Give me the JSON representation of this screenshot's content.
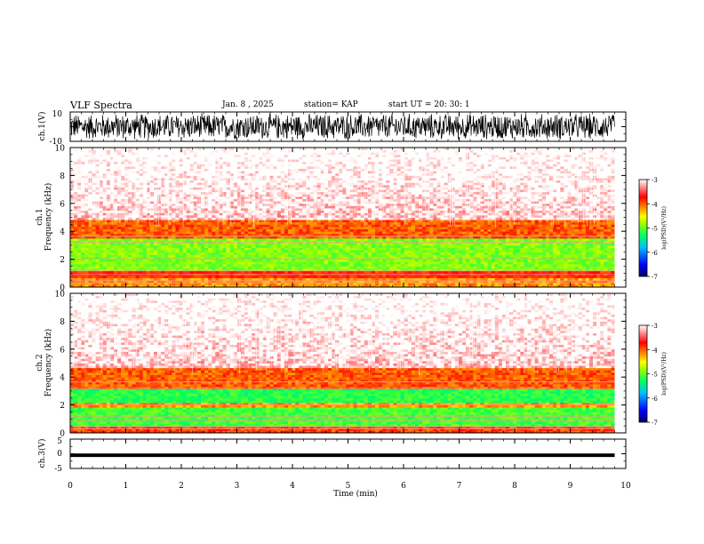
{
  "header": {
    "title": "VLF Spectra",
    "date": "Jan. 8 , 2025",
    "station": "station= KAP",
    "start": "start UT = 20: 30: 1"
  },
  "chart_data": [
    {
      "type": "line",
      "name": "ch1-waveform",
      "ylabel": "ch.1(V)",
      "ylim": [
        -10,
        10
      ],
      "yticks": [
        "10",
        "-10"
      ],
      "xlim": [
        0,
        10
      ],
      "description_values": "dense noise waveform mostly between -7 and 7 V"
    },
    {
      "type": "heatmap",
      "name": "ch1-spectrogram",
      "ylabel_top": "ch.1",
      "ylabel": "Frequency (kHz)",
      "ylim": [
        0,
        10
      ],
      "yticks": [
        "0",
        "2",
        "4",
        "6",
        "8",
        "10"
      ],
      "xlim": [
        0,
        9.8
      ],
      "bands": [
        {
          "from": 0,
          "to": 0.6,
          "level": -4.2
        },
        {
          "from": 0.6,
          "to": 1.1,
          "level": -3.8
        },
        {
          "from": 1.1,
          "to": 3.5,
          "level": -4.9
        },
        {
          "from": 3.5,
          "to": 4.8,
          "level": -4.0
        },
        {
          "from": 4.8,
          "to": 10,
          "level": -3.2
        }
      ]
    },
    {
      "type": "heatmap",
      "name": "ch2-spectrogram",
      "ylabel_top": "ch.2",
      "ylabel": "Frequency (kHz)",
      "ylim": [
        0,
        10
      ],
      "yticks": [
        "0",
        "2",
        "4",
        "6",
        "8",
        "10"
      ],
      "xlim": [
        0,
        9.8
      ],
      "bands": [
        {
          "from": 0,
          "to": 0.5,
          "level": -3.9
        },
        {
          "from": 0.5,
          "to": 1.8,
          "level": -5.1
        },
        {
          "from": 1.8,
          "to": 2.1,
          "level": -4.2
        },
        {
          "from": 2.1,
          "to": 3.1,
          "level": -5.2
        },
        {
          "from": 3.1,
          "to": 4.6,
          "level": -4.0
        },
        {
          "from": 4.6,
          "to": 10,
          "level": -3.2
        }
      ]
    },
    {
      "type": "line",
      "name": "ch3-waveform",
      "ylabel": "ch.3(V)",
      "ylim": [
        -5,
        5
      ],
      "yticks": [
        "5",
        "0",
        "-5"
      ],
      "xlim": [
        0,
        10
      ],
      "level": -0.5,
      "amplitude": 0.6
    }
  ],
  "xaxis": {
    "label": "Time (min)",
    "ticks": [
      "0",
      "1",
      "2",
      "3",
      "4",
      "5",
      "6",
      "7",
      "8",
      "9",
      "10"
    ],
    "range": [
      0,
      10
    ]
  },
  "colorbar": {
    "label": "log(PSD)(V²/Hz)",
    "ticks": [
      "-3",
      "-4",
      "-5",
      "-6",
      "-7"
    ],
    "range": [
      -7,
      -3
    ],
    "colors": [
      "#000080",
      "#0000ff",
      "#00a0ff",
      "#00ff80",
      "#40ff00",
      "#ffff00",
      "#ff8000",
      "#ff0000",
      "#ffffff"
    ]
  }
}
